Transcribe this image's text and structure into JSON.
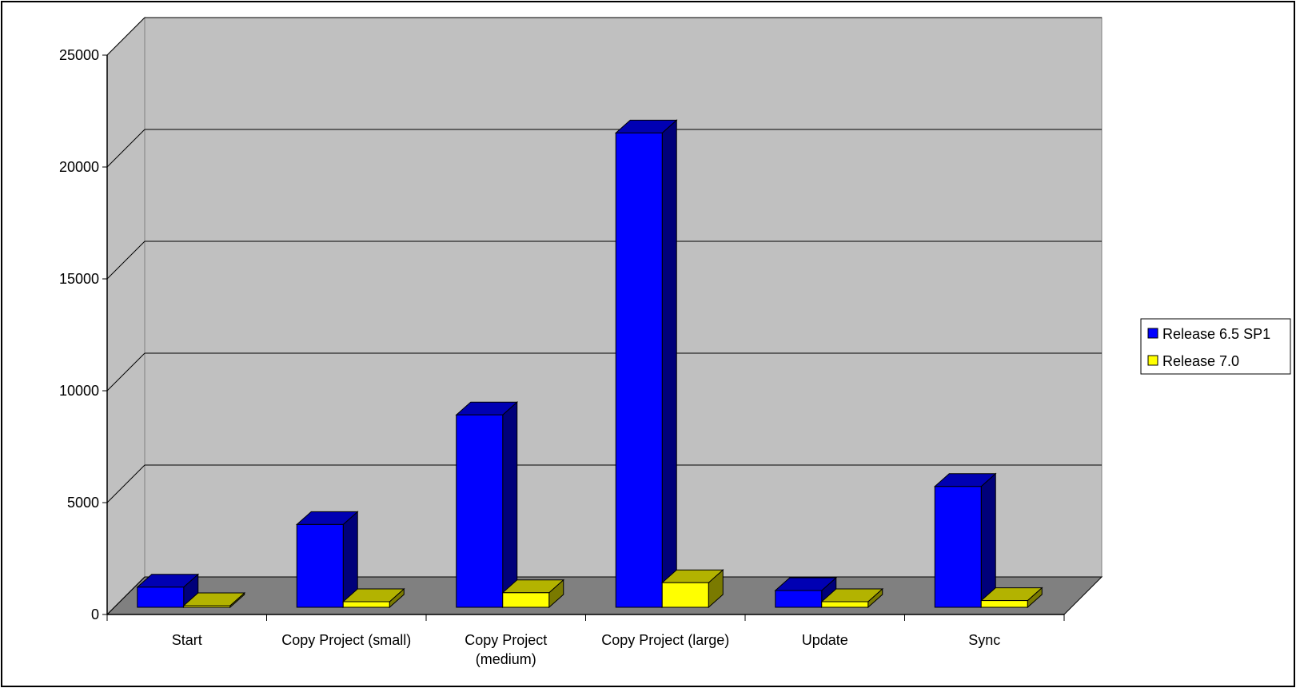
{
  "chart_data": {
    "type": "bar",
    "style": "3d-clustered-column",
    "categories": [
      "Start",
      "Copy Project (small)",
      "Copy Project (medium)",
      "Copy Project (large)",
      "Update",
      "Sync"
    ],
    "category_lines": [
      [
        "Start"
      ],
      [
        "Copy Project (small)"
      ],
      [
        "Copy Project",
        "(medium)"
      ],
      [
        "Copy Project (large)"
      ],
      [
        "Update"
      ],
      [
        "Sync"
      ]
    ],
    "series": [
      {
        "name": "Release 6.5 SP1",
        "values": [
          900,
          3700,
          8600,
          21200,
          750,
          5400
        ]
      },
      {
        "name": "Release 7.0",
        "values": [
          50,
          250,
          650,
          1100,
          250,
          300
        ]
      }
    ],
    "y_ticks": [
      "0",
      "5000",
      "10000",
      "15000",
      "20000",
      "25000"
    ],
    "ylim": [
      0,
      25000
    ],
    "grid": true,
    "legend_position": "right",
    "title": "",
    "xlabel": "",
    "ylabel": ""
  },
  "colors": {
    "series_front": [
      "#0000ff",
      "#ffff00"
    ],
    "series_top": [
      "#0000b3",
      "#b3b300"
    ],
    "series_side": [
      "#00007a",
      "#7a7a00"
    ],
    "wall": "#c0c0c0",
    "floor": "#808080",
    "frame": "#000000"
  }
}
